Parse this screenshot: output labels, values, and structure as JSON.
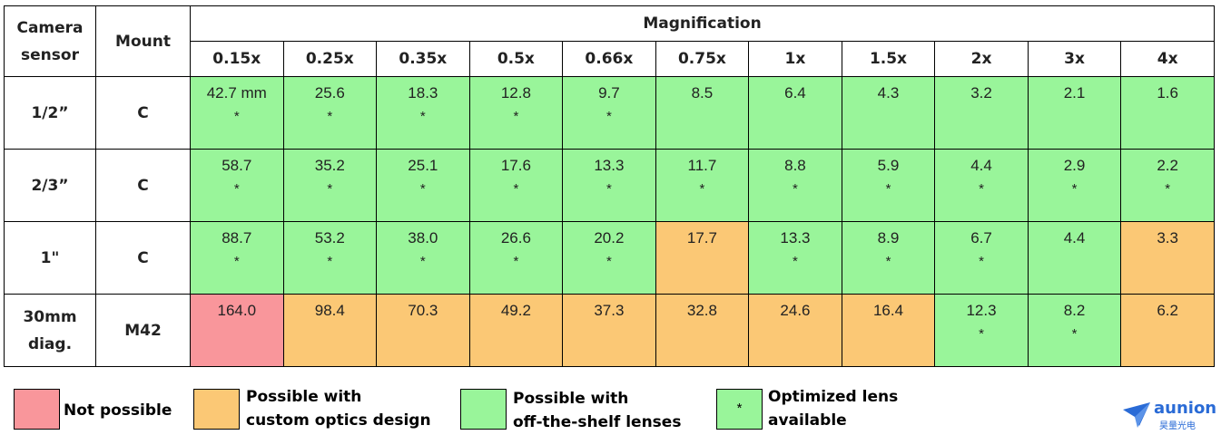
{
  "headers": {
    "camera_sensor": "Camera sensor",
    "mount": "Mount",
    "magnification": "Magnification",
    "magnifications": [
      "0.15x",
      "0.25x",
      "0.35x",
      "0.5x",
      "0.66x",
      "0.75x",
      "1x",
      "1.5x",
      "2x",
      "3x",
      "4x"
    ]
  },
  "rows": [
    {
      "sensor": "1/2”",
      "mount": "C",
      "cells": [
        {
          "value": "42.7 mm",
          "status": "g",
          "star": "*"
        },
        {
          "value": "25.6",
          "status": "g",
          "star": "*"
        },
        {
          "value": "18.3",
          "status": "g",
          "star": "*"
        },
        {
          "value": "12.8",
          "status": "g",
          "star": "*"
        },
        {
          "value": "9.7",
          "status": "g",
          "star": "*"
        },
        {
          "value": "8.5",
          "status": "g",
          "star": ""
        },
        {
          "value": "6.4",
          "status": "g",
          "star": ""
        },
        {
          "value": "4.3",
          "status": "g",
          "star": ""
        },
        {
          "value": "3.2",
          "status": "g",
          "star": ""
        },
        {
          "value": "2.1",
          "status": "g",
          "star": ""
        },
        {
          "value": "1.6",
          "status": "g",
          "star": ""
        }
      ]
    },
    {
      "sensor": "2/3”",
      "mount": "C",
      "cells": [
        {
          "value": "58.7",
          "status": "g",
          "star": "*"
        },
        {
          "value": "35.2",
          "status": "g",
          "star": "*"
        },
        {
          "value": "25.1",
          "status": "g",
          "star": "*"
        },
        {
          "value": "17.6",
          "status": "g",
          "star": "*"
        },
        {
          "value": "13.3",
          "status": "g",
          "star": "*"
        },
        {
          "value": "11.7",
          "status": "g",
          "star": "*"
        },
        {
          "value": "8.8",
          "status": "g",
          "star": "*"
        },
        {
          "value": "5.9",
          "status": "g",
          "star": "*"
        },
        {
          "value": "4.4",
          "status": "g",
          "star": "*"
        },
        {
          "value": "2.9",
          "status": "g",
          "star": "*"
        },
        {
          "value": "2.2",
          "status": "g",
          "star": "*"
        }
      ]
    },
    {
      "sensor": "1\"",
      "mount": "C",
      "cells": [
        {
          "value": "88.7",
          "status": "g",
          "star": "*"
        },
        {
          "value": "53.2",
          "status": "g",
          "star": "*"
        },
        {
          "value": "38.0",
          "status": "g",
          "star": "*"
        },
        {
          "value": "26.6",
          "status": "g",
          "star": "*"
        },
        {
          "value": "20.2",
          "status": "g",
          "star": "*"
        },
        {
          "value": "17.7",
          "status": "o",
          "star": ""
        },
        {
          "value": "13.3",
          "status": "g",
          "star": "*"
        },
        {
          "value": "8.9",
          "status": "g",
          "star": "*"
        },
        {
          "value": "6.7",
          "status": "g",
          "star": "*"
        },
        {
          "value": "4.4",
          "status": "g",
          "star": ""
        },
        {
          "value": "3.3",
          "status": "o",
          "star": ""
        }
      ]
    },
    {
      "sensor": "30mm diag.",
      "mount": "M42",
      "cells": [
        {
          "value": "164.0",
          "status": "r",
          "star": ""
        },
        {
          "value": "98.4",
          "status": "o",
          "star": ""
        },
        {
          "value": "70.3",
          "status": "o",
          "star": ""
        },
        {
          "value": "49.2",
          "status": "o",
          "star": ""
        },
        {
          "value": "37.3",
          "status": "o",
          "star": ""
        },
        {
          "value": "32.8",
          "status": "o",
          "star": ""
        },
        {
          "value": "24.6",
          "status": "o",
          "star": ""
        },
        {
          "value": "16.4",
          "status": "o",
          "star": ""
        },
        {
          "value": "12.3",
          "status": "g",
          "star": "*"
        },
        {
          "value": "8.2",
          "status": "g",
          "star": "*"
        },
        {
          "value": "6.2",
          "status": "o",
          "star": ""
        }
      ]
    }
  ],
  "legend": {
    "not_possible": "Not possible",
    "custom_line1": "Possible with",
    "custom_line2": "custom optics design",
    "shelf_line1": "Possible with",
    "shelf_line2": "off-the-shelf lenses",
    "optimized_symbol": "*",
    "optimized_line1": "Optimized lens",
    "optimized_line2": "available"
  },
  "colors": {
    "not_possible": "#f9969b",
    "custom": "#fbc875",
    "off_the_shelf": "#99f59a",
    "logo": "#2a6bd6"
  },
  "logo": {
    "name": "aunion",
    "sub": "昊量光电",
    "icon": "paper-plane-icon"
  }
}
